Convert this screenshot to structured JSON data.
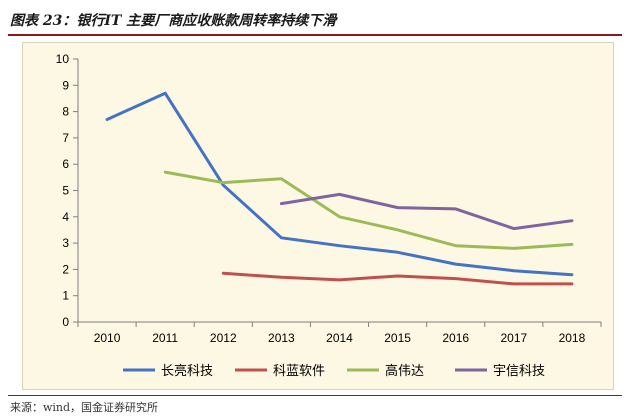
{
  "header": {
    "title": "图表 23：银行IT 主要厂商应收账款周转率持续下滑"
  },
  "footer": {
    "source": "来源：wind，国金证券研究所"
  },
  "chart_data": {
    "type": "line",
    "x": [
      "2010",
      "2011",
      "2012",
      "2013",
      "2014",
      "2015",
      "2016",
      "2017",
      "2018"
    ],
    "ylim": [
      0,
      10
    ],
    "yticks": [
      0,
      1,
      2,
      3,
      4,
      5,
      6,
      7,
      8,
      9,
      10
    ],
    "grid": false,
    "legend": "bottom",
    "series": [
      {
        "name": "长亮科技",
        "color": "#4472c4",
        "values": [
          7.7,
          8.7,
          5.2,
          3.2,
          2.9,
          2.65,
          2.2,
          1.95,
          1.8
        ]
      },
      {
        "name": "科蓝软件",
        "color": "#c0504d",
        "values": [
          null,
          null,
          1.85,
          1.7,
          1.6,
          1.75,
          1.65,
          1.45,
          1.45
        ]
      },
      {
        "name": "高伟达",
        "color": "#9bbb59",
        "values": [
          null,
          5.7,
          5.3,
          5.45,
          4.0,
          3.5,
          2.9,
          2.8,
          2.95
        ]
      },
      {
        "name": "宇信科技",
        "color": "#8064a2",
        "values": [
          null,
          null,
          null,
          4.5,
          4.85,
          4.35,
          4.3,
          3.55,
          3.85
        ]
      }
    ]
  }
}
